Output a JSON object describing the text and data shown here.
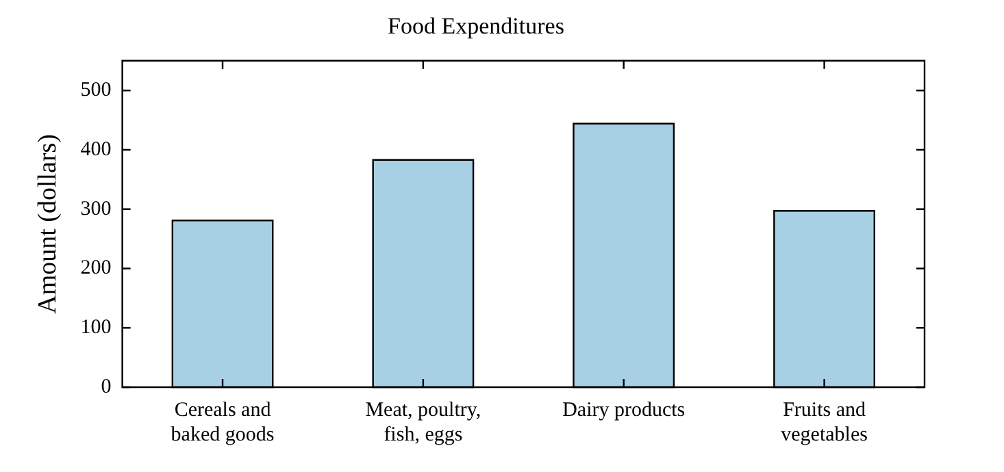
{
  "chart_data": {
    "type": "bar",
    "title": "Food Expenditures",
    "ylabel": "Amount (dollars)",
    "categories": [
      "Cereals and\nbaked goods",
      "Meat, poultry,\nfish, eggs",
      "Dairy products",
      "Fruits and\nvegetables"
    ],
    "values": [
      281,
      383,
      444,
      297
    ],
    "color": "#a8d0e4",
    "ylim": [
      0,
      550
    ],
    "yticks": [
      0,
      100,
      200,
      300,
      400,
      500
    ],
    "grid": false,
    "legend": false
  }
}
